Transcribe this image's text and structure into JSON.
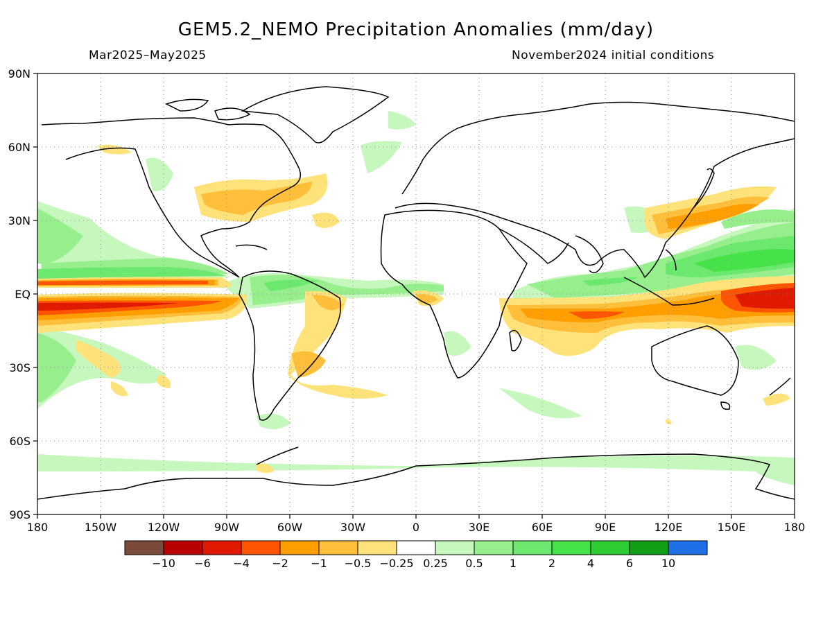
{
  "title": "GEM5.2_NEMO Precipitation Anomalies (mm/day)",
  "subtitle_left": "Mar2025–May2025",
  "subtitle_right": "November2024 initial conditions",
  "map": {
    "projection": "cylindrical equidistant",
    "lon_range": [
      -180,
      180
    ],
    "lat_range": [
      -90,
      90
    ],
    "grid": true,
    "lat_labels": [
      "90N",
      "60N",
      "30N",
      "EQ",
      "30S",
      "60S",
      "90S"
    ],
    "lon_labels": [
      "180",
      "150W",
      "120W",
      "90W",
      "60W",
      "30W",
      "0",
      "30E",
      "60E",
      "90E",
      "120E",
      "150E",
      "180"
    ]
  },
  "colorbar": {
    "labels": [
      "−10",
      "−6",
      "−4",
      "−2",
      "−1",
      "−0.5",
      "−0.25",
      "0.25",
      "0.5",
      "1",
      "2",
      "4",
      "6",
      "10"
    ],
    "colors": [
      "#7a4a3a",
      "#b80000",
      "#e01a00",
      "#ff5500",
      "#ff9e00",
      "#ffbf3a",
      "#ffe27a",
      "#ffffff",
      "#c6f7bc",
      "#96ef8c",
      "#6de86e",
      "#47e24a",
      "#2fcb33",
      "#139e17",
      "#1e6fe8"
    ]
  }
}
